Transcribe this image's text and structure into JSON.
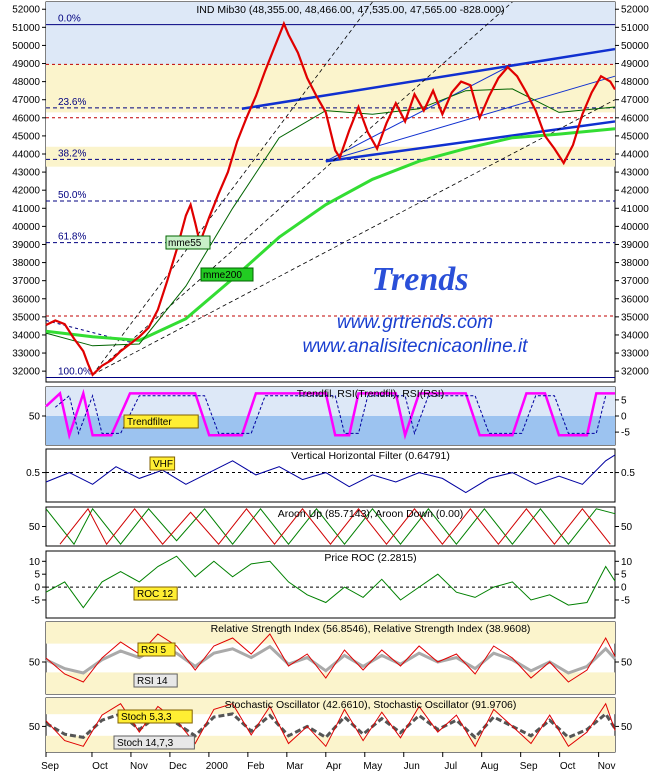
{
  "chart_data": {
    "type": "line",
    "months": [
      "Sep",
      "Oct",
      "Nov",
      "Dec",
      "2000",
      "Feb",
      "Mar",
      "Apr",
      "May",
      "Jun",
      "Jul",
      "Aug",
      "Sep",
      "Oct",
      "Nov"
    ],
    "main": {
      "title": "IND Mib30 (48,355.00, 48,466.00, 47,535.00, 47,565.00 -828.000)",
      "ylim": [
        31400,
        52400
      ],
      "yticks": [
        32000,
        33000,
        34000,
        35000,
        36000,
        37000,
        38000,
        39000,
        40000,
        41000,
        42000,
        43000,
        44000,
        45000,
        46000,
        47000,
        48000,
        49000,
        50000,
        51000,
        52000
      ],
      "fib_levels": [
        {
          "label": "0.0%",
          "value": 51150
        },
        {
          "label": "23.6%",
          "value": 46550
        },
        {
          "label": "38.2%",
          "value": 43700
        },
        {
          "label": "50.0%",
          "value": 41400
        },
        {
          "label": "61.8%",
          "value": 39100
        },
        {
          "label": "100.0%",
          "value": 31650
        }
      ],
      "red_dashed_levels": [
        48950,
        46000,
        35050
      ],
      "ma_labels": {
        "mme55": "mme55",
        "mme200": "mme200"
      },
      "price": [
        [
          0,
          34550
        ],
        [
          2,
          34800
        ],
        [
          4,
          34600
        ],
        [
          6,
          33800
        ],
        [
          8,
          33100
        ],
        [
          9,
          32400
        ],
        [
          10,
          31800
        ],
        [
          12,
          32300
        ],
        [
          14,
          32600
        ],
        [
          16,
          33100
        ],
        [
          18,
          33500
        ],
        [
          20,
          33900
        ],
        [
          22,
          34400
        ],
        [
          24,
          35400
        ],
        [
          26,
          37000
        ],
        [
          28,
          38700
        ],
        [
          30,
          40600
        ],
        [
          31,
          41200
        ],
        [
          32,
          40200
        ],
        [
          33,
          39100
        ],
        [
          35,
          40500
        ],
        [
          37,
          41800
        ],
        [
          39,
          43000
        ],
        [
          41,
          44700
        ],
        [
          43,
          46000
        ],
        [
          45,
          47200
        ],
        [
          47,
          48600
        ],
        [
          49,
          49900
        ],
        [
          51,
          51200
        ],
        [
          52,
          50600
        ],
        [
          54,
          49600
        ],
        [
          56,
          48200
        ],
        [
          58,
          47200
        ],
        [
          60,
          46300
        ],
        [
          62,
          44200
        ],
        [
          63,
          43800
        ],
        [
          65,
          45300
        ],
        [
          67,
          46600
        ],
        [
          69,
          45200
        ],
        [
          71,
          44300
        ],
        [
          73,
          45700
        ],
        [
          75,
          46800
        ],
        [
          77,
          45800
        ],
        [
          79,
          47300
        ],
        [
          81,
          46400
        ],
        [
          83,
          47500
        ],
        [
          85,
          46200
        ],
        [
          87,
          47400
        ],
        [
          89,
          48000
        ],
        [
          91,
          47800
        ],
        [
          93,
          46000
        ],
        [
          95,
          47200
        ],
        [
          97,
          48200
        ],
        [
          99,
          48800
        ],
        [
          101,
          48300
        ],
        [
          103,
          47400
        ],
        [
          105,
          46400
        ],
        [
          107,
          45000
        ],
        [
          109,
          44300
        ],
        [
          111,
          43500
        ],
        [
          113,
          44500
        ],
        [
          115,
          46200
        ],
        [
          117,
          47400
        ],
        [
          119,
          48300
        ],
        [
          121,
          48000
        ],
        [
          122,
          47565
        ]
      ],
      "mme55": [
        [
          0,
          34100
        ],
        [
          10,
          33400
        ],
        [
          20,
          33500
        ],
        [
          30,
          36700
        ],
        [
          40,
          41000
        ],
        [
          50,
          44900
        ],
        [
          60,
          46400
        ],
        [
          70,
          46200
        ],
        [
          80,
          46500
        ],
        [
          90,
          47500
        ],
        [
          100,
          47600
        ],
        [
          110,
          46300
        ],
        [
          122,
          46600
        ]
      ],
      "mme200": [
        [
          0,
          34200
        ],
        [
          10,
          33900
        ],
        [
          20,
          33700
        ],
        [
          30,
          34900
        ],
        [
          40,
          37100
        ],
        [
          50,
          39400
        ],
        [
          60,
          41200
        ],
        [
          70,
          42600
        ],
        [
          80,
          43600
        ],
        [
          90,
          44300
        ],
        [
          100,
          44900
        ],
        [
          110,
          45100
        ],
        [
          122,
          45400
        ]
      ],
      "band": [
        43300,
        48950
      ]
    },
    "panels": [
      {
        "title": "Trendfil, RSI(Trendfil), RSI(RSI)",
        "label": "Trendfilter",
        "yticks_left": [
          50
        ],
        "yticks_right": [
          5,
          0,
          -5
        ],
        "series": [
          [
            0,
            3
          ],
          [
            3,
            7
          ],
          [
            5,
            -6
          ],
          [
            8,
            7
          ],
          [
            10,
            -6
          ],
          [
            14,
            -6
          ],
          [
            18,
            7
          ],
          [
            32,
            7
          ],
          [
            35,
            -6
          ],
          [
            42,
            -6
          ],
          [
            45,
            7
          ],
          [
            60,
            7
          ],
          [
            62,
            -6
          ],
          [
            65,
            -6
          ],
          [
            67,
            7
          ],
          [
            75,
            7
          ],
          [
            77,
            -6
          ],
          [
            80,
            7
          ],
          [
            90,
            7
          ],
          [
            93,
            -6
          ],
          [
            100,
            -6
          ],
          [
            103,
            7
          ],
          [
            107,
            7
          ],
          [
            110,
            -6
          ],
          [
            116,
            -6
          ],
          [
            118,
            7
          ],
          [
            122,
            7
          ]
        ]
      },
      {
        "title": "Vertical Horizontal Filter (0.64791)",
        "label": "VHF",
        "yticks_left": [
          0.5
        ],
        "yticks_right": [
          0.5
        ],
        "series": [
          [
            0,
            0.42
          ],
          [
            5,
            0.5
          ],
          [
            10,
            0.4
          ],
          [
            15,
            0.55
          ],
          [
            20,
            0.45
          ],
          [
            25,
            0.52
          ],
          [
            30,
            0.4
          ],
          [
            35,
            0.5
          ],
          [
            40,
            0.6
          ],
          [
            45,
            0.48
          ],
          [
            50,
            0.55
          ],
          [
            55,
            0.44
          ],
          [
            60,
            0.5
          ],
          [
            65,
            0.38
          ],
          [
            70,
            0.48
          ],
          [
            75,
            0.42
          ],
          [
            80,
            0.5
          ],
          [
            85,
            0.45
          ],
          [
            90,
            0.33
          ],
          [
            95,
            0.45
          ],
          [
            100,
            0.5
          ],
          [
            105,
            0.4
          ],
          [
            110,
            0.47
          ],
          [
            115,
            0.4
          ],
          [
            120,
            0.6
          ],
          [
            122,
            0.65
          ]
        ]
      },
      {
        "title": "Aroon Up (85.7143), Aroon Down (0.00)",
        "label": "",
        "yticks_left": [
          50
        ],
        "yticks_right": [
          50
        ],
        "series": [
          [
            0,
            100
          ],
          [
            6,
            0
          ],
          [
            10,
            100
          ],
          [
            16,
            0
          ],
          [
            22,
            100
          ],
          [
            28,
            10
          ],
          [
            34,
            100
          ],
          [
            40,
            0
          ],
          [
            46,
            100
          ],
          [
            52,
            0
          ],
          [
            58,
            100
          ],
          [
            64,
            0
          ],
          [
            70,
            100
          ],
          [
            76,
            0
          ],
          [
            82,
            100
          ],
          [
            88,
            0
          ],
          [
            94,
            100
          ],
          [
            100,
            0
          ],
          [
            106,
            100
          ],
          [
            112,
            0
          ],
          [
            118,
            100
          ],
          [
            122,
            86
          ]
        ]
      },
      {
        "title": "Price ROC (2.2815)",
        "label": "ROC 12",
        "yticks_left": [
          10,
          5,
          0,
          -5
        ],
        "yticks_right": [
          10,
          5,
          0,
          -5
        ],
        "series": [
          [
            0,
            -2
          ],
          [
            4,
            2
          ],
          [
            8,
            -8
          ],
          [
            12,
            2
          ],
          [
            16,
            6
          ],
          [
            20,
            2
          ],
          [
            24,
            8
          ],
          [
            28,
            12
          ],
          [
            32,
            4
          ],
          [
            36,
            10
          ],
          [
            40,
            4
          ],
          [
            44,
            9
          ],
          [
            48,
            10
          ],
          [
            52,
            2
          ],
          [
            56,
            -3
          ],
          [
            60,
            -6
          ],
          [
            64,
            0
          ],
          [
            68,
            -4
          ],
          [
            72,
            3
          ],
          [
            76,
            -5
          ],
          [
            80,
            0
          ],
          [
            84,
            5
          ],
          [
            88,
            -2
          ],
          [
            92,
            -4
          ],
          [
            96,
            0
          ],
          [
            100,
            2
          ],
          [
            104,
            -5
          ],
          [
            108,
            -3
          ],
          [
            112,
            -7
          ],
          [
            116,
            -6
          ],
          [
            120,
            8
          ],
          [
            122,
            2.3
          ]
        ]
      },
      {
        "title": "Relative Strength Index (56.8546), Relative Strength Index (38.9608)",
        "label": "RSI 5",
        "label2": "RSI 14",
        "yticks_left": [
          50
        ],
        "yticks_right": [
          50
        ],
        "series": [
          [
            0,
            55
          ],
          [
            4,
            35
          ],
          [
            8,
            25
          ],
          [
            12,
            55
          ],
          [
            16,
            75
          ],
          [
            20,
            60
          ],
          [
            24,
            85
          ],
          [
            28,
            70
          ],
          [
            32,
            40
          ],
          [
            36,
            70
          ],
          [
            40,
            80
          ],
          [
            44,
            60
          ],
          [
            48,
            85
          ],
          [
            52,
            45
          ],
          [
            56,
            60
          ],
          [
            60,
            30
          ],
          [
            64,
            65
          ],
          [
            68,
            40
          ],
          [
            72,
            65
          ],
          [
            76,
            45
          ],
          [
            80,
            70
          ],
          [
            84,
            50
          ],
          [
            88,
            60
          ],
          [
            92,
            35
          ],
          [
            96,
            70
          ],
          [
            100,
            55
          ],
          [
            104,
            30
          ],
          [
            108,
            50
          ],
          [
            112,
            25
          ],
          [
            116,
            40
          ],
          [
            120,
            80
          ],
          [
            122,
            57
          ]
        ]
      },
      {
        "title": "Stochastic Oscillator (42.6610), Stochastic Oscillator (91.9706)",
        "label": "Stoch 5,3,3",
        "label2": "Stoch 14,7,3",
        "yticks_left": [
          50
        ],
        "yticks_right": [
          50
        ],
        "series": [
          [
            0,
            60
          ],
          [
            4,
            25
          ],
          [
            8,
            15
          ],
          [
            12,
            70
          ],
          [
            16,
            90
          ],
          [
            20,
            40
          ],
          [
            24,
            85
          ],
          [
            28,
            60
          ],
          [
            32,
            20
          ],
          [
            36,
            80
          ],
          [
            40,
            90
          ],
          [
            44,
            35
          ],
          [
            48,
            85
          ],
          [
            52,
            20
          ],
          [
            56,
            50
          ],
          [
            60,
            15
          ],
          [
            64,
            80
          ],
          [
            68,
            25
          ],
          [
            72,
            75
          ],
          [
            76,
            30
          ],
          [
            80,
            85
          ],
          [
            84,
            40
          ],
          [
            88,
            70
          ],
          [
            92,
            15
          ],
          [
            96,
            80
          ],
          [
            100,
            50
          ],
          [
            104,
            20
          ],
          [
            108,
            70
          ],
          [
            112,
            15
          ],
          [
            116,
            40
          ],
          [
            120,
            90
          ],
          [
            122,
            43
          ]
        ]
      }
    ],
    "watermark": {
      "brand": "Trends",
      "url1": "www.grtrends.com",
      "url2": "www.analisitecnicaonline.it"
    }
  }
}
